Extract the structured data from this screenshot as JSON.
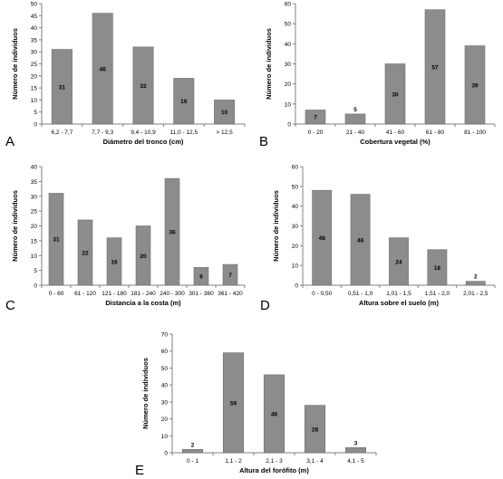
{
  "chart_data": [
    {
      "panel": "A",
      "type": "bar",
      "xlabel": "Diámetro del tronco (cm)",
      "ylabel": "Número de individuos",
      "ylim": [
        0,
        50
      ],
      "yticks": [
        0,
        5,
        10,
        15,
        20,
        25,
        30,
        35,
        40,
        45,
        50
      ],
      "categories": [
        "6,2 - 7,7",
        "7,7 - 9,3",
        "9,4 - 10,9",
        "11,0 - 12,5",
        "> 12,5"
      ],
      "values": [
        31,
        46,
        32,
        19,
        10
      ],
      "data_labels": [
        "31",
        "46",
        "32",
        "19",
        "10"
      ],
      "grid": false
    },
    {
      "panel": "B",
      "type": "bar",
      "xlabel": "Cobertura vegetal (%)",
      "ylabel": "Número de individuos",
      "ylim": [
        0,
        60
      ],
      "yticks": [
        0,
        10,
        20,
        30,
        40,
        50,
        60
      ],
      "categories": [
        "0 - 20",
        "21 - 40",
        "41 - 60",
        "61 - 80",
        "81 - 100"
      ],
      "values": [
        7,
        5,
        30,
        57,
        39
      ],
      "data_labels": [
        "7",
        "5",
        "30",
        "57",
        "39"
      ],
      "grid": false
    },
    {
      "panel": "C",
      "type": "bar",
      "xlabel": "Distancia a la costa (m)",
      "ylabel": "Número de individuos",
      "ylim": [
        0,
        40
      ],
      "yticks": [
        0,
        5,
        10,
        15,
        20,
        25,
        30,
        35,
        40
      ],
      "categories": [
        "0 - 60",
        "61 - 120",
        "121 - 180",
        "181 - 240",
        "240 - 300",
        "301 - 360",
        "361 - 420"
      ],
      "values": [
        31,
        22,
        16,
        20,
        36,
        6,
        7
      ],
      "data_labels": [
        "31",
        "22",
        "16",
        "20",
        "36",
        "6",
        "7"
      ],
      "grid": false
    },
    {
      "panel": "D",
      "type": "bar",
      "xlabel": "Altura sobre el suelo (m)",
      "ylabel": "Número de individuos",
      "ylim": [
        0,
        60
      ],
      "yticks": [
        0,
        10,
        20,
        30,
        40,
        50,
        60
      ],
      "categories": [
        "0 - 0,50",
        "0,51 - 1,0",
        "1,01 - 1,5",
        "1,51 - 2,0",
        "2,01 - 2,5"
      ],
      "values": [
        48,
        46,
        24,
        18,
        2
      ],
      "data_labels": [
        "48",
        "46",
        "24",
        "18",
        "2"
      ],
      "grid": false
    },
    {
      "panel": "E",
      "type": "bar",
      "xlabel": "Altura del forófito (m)",
      "ylabel": "Número de individuos",
      "ylim": [
        0,
        70
      ],
      "yticks": [
        0,
        10,
        20,
        30,
        40,
        50,
        60,
        70
      ],
      "categories": [
        "0 - 1",
        "1,1 - 2",
        "2,1 - 3",
        "3,1 - 4",
        "4,1 - 5"
      ],
      "values": [
        2,
        59,
        46,
        28,
        3
      ],
      "data_labels": [
        "2",
        "59",
        "46",
        "28",
        "3"
      ],
      "grid": false
    }
  ],
  "colors": {
    "bar_fill": "#8c8c8c",
    "bar_stroke": "#6e6e6e",
    "axis": "#808080",
    "text": "#000000"
  }
}
